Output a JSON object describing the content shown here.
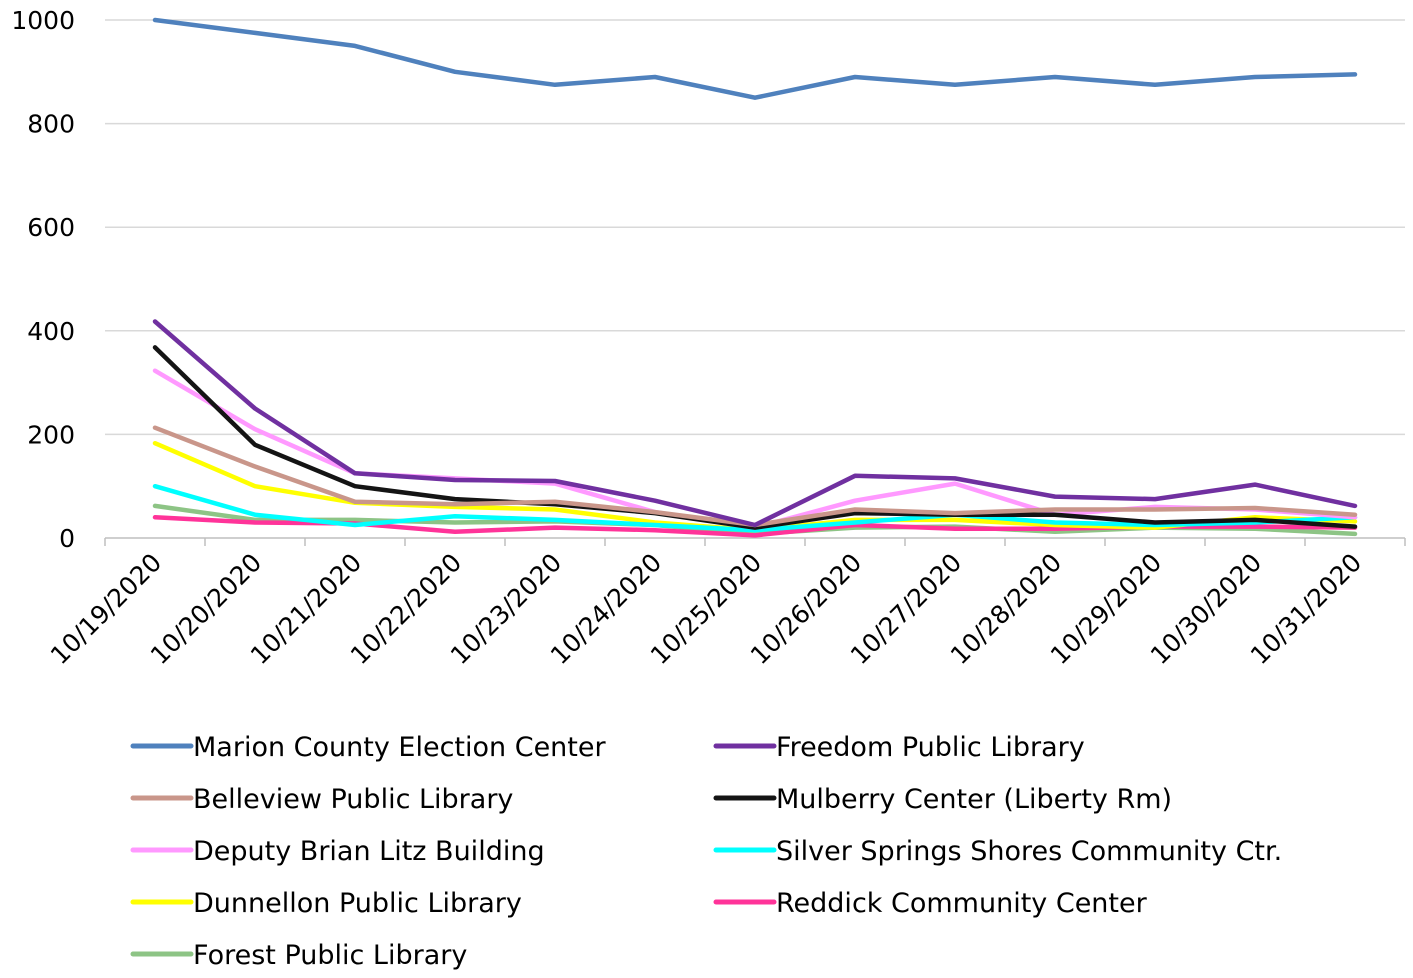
{
  "chart_data": {
    "type": "line",
    "title": "",
    "xlabel": "",
    "ylabel": "",
    "ylim": [
      0,
      1000
    ],
    "yticks": [
      "0",
      "200",
      "400",
      "600",
      "800",
      "1000"
    ],
    "grid": true,
    "legend_position": "bottom",
    "x": [
      "10/19/2020",
      "10/20/2020",
      "10/21/2020",
      "10/22/2020",
      "10/23/2020",
      "10/24/2020",
      "10/25/2020",
      "10/26/2020",
      "10/27/2020",
      "10/28/2020",
      "10/29/2020",
      "10/30/2020",
      "10/31/2020"
    ],
    "series": [
      {
        "name": "Marion County Election Center",
        "color": "#4f81bd",
        "values": [
          1000,
          975,
          950,
          900,
          875,
          890,
          850,
          890,
          875,
          890,
          875,
          890,
          895
        ]
      },
      {
        "name": "Freedom Public Library",
        "color": "#7030a0",
        "values": [
          418,
          250,
          125,
          112,
          110,
          72,
          25,
          120,
          115,
          80,
          75,
          103,
          62
        ]
      },
      {
        "name": "Belleview Public Library",
        "color": "#c9968a",
        "values": [
          213,
          138,
          70,
          65,
          70,
          50,
          25,
          55,
          48,
          55,
          55,
          58,
          45
        ]
      },
      {
        "name": "Mulberry Center (Liberty Rm)",
        "color": "#141414",
        "values": [
          368,
          180,
          100,
          75,
          65,
          48,
          20,
          48,
          45,
          45,
          30,
          35,
          22
        ]
      },
      {
        "name": "Deputy Brian Litz Building",
        "color": "#ff99ff",
        "values": [
          323,
          210,
          125,
          115,
          105,
          50,
          20,
          72,
          105,
          45,
          60,
          55,
          40
        ]
      },
      {
        "name": "Silver Springs Shores Community Ctr.",
        "color": "#00ffff",
        "values": [
          100,
          45,
          25,
          42,
          35,
          25,
          15,
          30,
          45,
          30,
          25,
          30,
          40
        ]
      },
      {
        "name": "Dunnellon Public Library",
        "color": "#ffff00",
        "values": [
          183,
          100,
          68,
          60,
          55,
          30,
          15,
          35,
          35,
          25,
          20,
          40,
          32
        ]
      },
      {
        "name": "Reddick Community Center",
        "color": "#ff3399",
        "values": [
          40,
          30,
          28,
          12,
          20,
          15,
          5,
          25,
          18,
          18,
          22,
          22,
          20
        ]
      },
      {
        "name": "Forest Public Library",
        "color": "#8dc485",
        "values": [
          62,
          35,
          35,
          30,
          32,
          25,
          8,
          20,
          22,
          12,
          20,
          18,
          8
        ]
      }
    ]
  }
}
